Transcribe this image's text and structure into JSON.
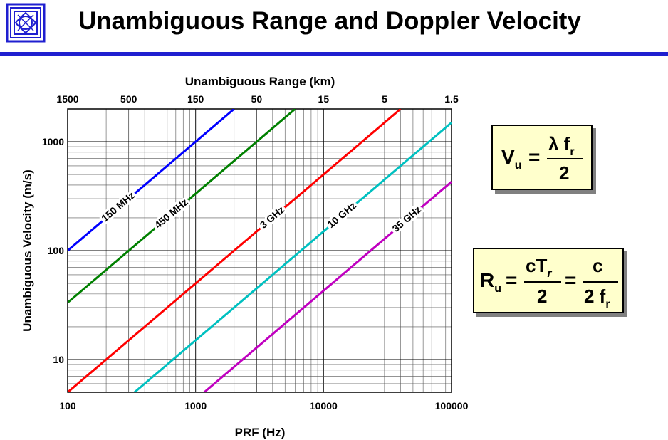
{
  "slide": {
    "title": "Unambiguous Range and Doppler Velocity"
  },
  "colors": {
    "accent_rule": "#1f1fd0",
    "formula_bg": "#ffffcc"
  },
  "formulas": {
    "velocity": {
      "lhs_main": "V",
      "lhs_sub": "u",
      "equals": "=",
      "numerator_main": "λ f",
      "numerator_sub": "r",
      "denominator": "2"
    },
    "range": {
      "lhs_main": "R",
      "lhs_sub": "u",
      "equals1": "=",
      "frac1_num_main": "cT",
      "frac1_num_sub": "r",
      "frac1_den": "2",
      "equals2": "=",
      "frac2_num": "c",
      "frac2_den_main": "2 f",
      "frac2_den_sub": "r"
    }
  },
  "chart_data": {
    "type": "line",
    "x_scale": "log",
    "y_scale": "log",
    "xlim": [
      100,
      100000
    ],
    "ylim": [
      5,
      2000
    ],
    "xlabel": "PRF (Hz)",
    "ylabel": "Unambiguous Velocity (m/s)",
    "top_axis_label": "Unambiguous Range (km)",
    "x_ticks": [
      100,
      1000,
      10000,
      100000
    ],
    "x_tick_labels": [
      "100",
      "1000",
      "10000",
      "100000"
    ],
    "y_ticks": [
      10,
      100,
      1000
    ],
    "y_tick_labels": [
      "10",
      "100",
      "1000"
    ],
    "top_ticks": [
      {
        "range_km": 1500,
        "label": "1500"
      },
      {
        "range_km": 500,
        "label": "500"
      },
      {
        "range_km": 150,
        "label": "150"
      },
      {
        "range_km": 50,
        "label": "50"
      },
      {
        "range_km": 15,
        "label": "15"
      },
      {
        "range_km": 5,
        "label": "5"
      },
      {
        "range_km": 1.5,
        "label": "1.5"
      }
    ],
    "grid": true,
    "series": [
      {
        "name": "150 MHz",
        "color": "#0000ff",
        "x": [
          100,
          2000
        ],
        "y": [
          100,
          2000
        ]
      },
      {
        "name": "450 MHz",
        "color": "#008000",
        "x": [
          100,
          6000
        ],
        "y": [
          33.3,
          2000
        ]
      },
      {
        "name": "3 GHz",
        "color": "#ff0000",
        "x": [
          100,
          40000
        ],
        "y": [
          5,
          2000
        ]
      },
      {
        "name": "10 GHz",
        "color": "#00c0c0",
        "x": [
          333,
          100000
        ],
        "y": [
          5,
          1500
        ]
      },
      {
        "name": "35 GHz",
        "color": "#c000c0",
        "x": [
          1167,
          100000
        ],
        "y": [
          5,
          428.6
        ]
      }
    ]
  }
}
